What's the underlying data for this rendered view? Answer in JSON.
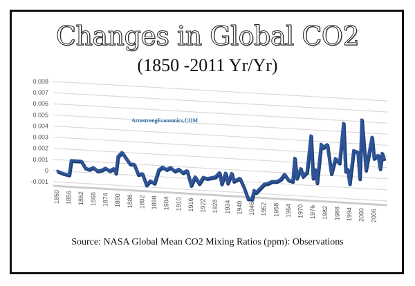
{
  "title": "Changes in Global CO2",
  "subtitle": "(1850 -2011 Yr/Yr)",
  "source": "Source: NASA Global Mean CO2 Mixing Ratios (ppm): Observations",
  "watermark": "ArmstrongEconomics.COM",
  "chart_data": {
    "type": "line",
    "title": "Changes in Global CO2",
    "subtitle": "(1850 -2011 Yr/Yr)",
    "xlabel": "",
    "ylabel": "",
    "xlim": [
      1850,
      2011
    ],
    "ylim": [
      -0.001,
      0.008
    ],
    "grid": true,
    "style": "3d-perspective",
    "line_color": "#2f5597",
    "y_ticks": [
      "0.008",
      "0.007",
      "0.006",
      "0.005",
      "0.004",
      "0.003",
      "0.002",
      "0.001",
      "0",
      "-0.001"
    ],
    "x_ticks": [
      "1850",
      "1856",
      "1862",
      "1868",
      "1874",
      "1880",
      "1886",
      "1892",
      "1898",
      "1904",
      "1910",
      "1916",
      "1922",
      "1928",
      "1934",
      "1940",
      "1946",
      "1952",
      "1958",
      "1964",
      "1970",
      "1976",
      "1982",
      "1988",
      "1994",
      "2000",
      "2006"
    ],
    "series": [
      {
        "x": [
          1850,
          1853,
          1856,
          1857,
          1860,
          1862,
          1864,
          1866,
          1868,
          1870,
          1872,
          1874,
          1876,
          1878,
          1879,
          1880,
          1882,
          1884,
          1886,
          1888,
          1890,
          1892,
          1894,
          1896,
          1898,
          1900,
          1902,
          1904,
          1906,
          1908,
          1910,
          1912,
          1914,
          1916,
          1918,
          1920,
          1922,
          1924,
          1926,
          1928,
          1930,
          1931,
          1933,
          1934,
          1936,
          1937,
          1940,
          1942,
          1944,
          1946,
          1947,
          1948,
          1950,
          1952,
          1954,
          1956,
          1958,
          1960,
          1962,
          1964,
          1966,
          1967,
          1968,
          1970,
          1971,
          1973,
          1975,
          1976,
          1977,
          1978,
          1980,
          1981,
          1983,
          1985,
          1987,
          1989,
          1991,
          1992,
          1993,
          1994,
          1996,
          1998,
          1999,
          2000,
          2002,
          2005,
          2006,
          2008,
          2009,
          2010,
          2011
        ],
        "y": [
          0,
          -0.0002,
          -0.0003,
          0.001,
          0.001,
          0.001,
          0.0004,
          0.0003,
          0.0005,
          0.0002,
          0.0003,
          0.0005,
          0.0003,
          0.0005,
          0.0001,
          0.0016,
          0.002,
          0.0015,
          0.001,
          0.001,
          0.0001,
          0.0002,
          -0.0008,
          -0.0004,
          -0.0006,
          0.0006,
          0.0009,
          0.0007,
          0.0009,
          0.0006,
          0.0008,
          0.0005,
          0.0007,
          -0.0006,
          0.0002,
          -0.0004,
          0.0002,
          0.0001,
          0.0002,
          0.0003,
          0.0007,
          -0.0003,
          0.0007,
          -0.0002,
          0.0007,
          0,
          0.0003,
          -0.0005,
          -0.0015,
          -0.0015,
          -0.0007,
          -0.0009,
          -0.0005,
          -0.0001,
          0,
          0.0002,
          0.0002,
          0.0004,
          0.0009,
          0.0004,
          0.0003,
          0.0024,
          0.0006,
          0.0015,
          0.0008,
          0.0012,
          0.0045,
          0.0007,
          0.0015,
          0.0003,
          0.0038,
          0.0035,
          0.0038,
          0.0012,
          0.0026,
          0.0022,
          0.0058,
          0.0015,
          0.0017,
          0.0004,
          0.0034,
          0.0033,
          0.0009,
          0.0062,
          0.0017,
          0.0047,
          0.0028,
          0.0031,
          0.0019,
          0.0033,
          0.0027
        ]
      }
    ]
  }
}
